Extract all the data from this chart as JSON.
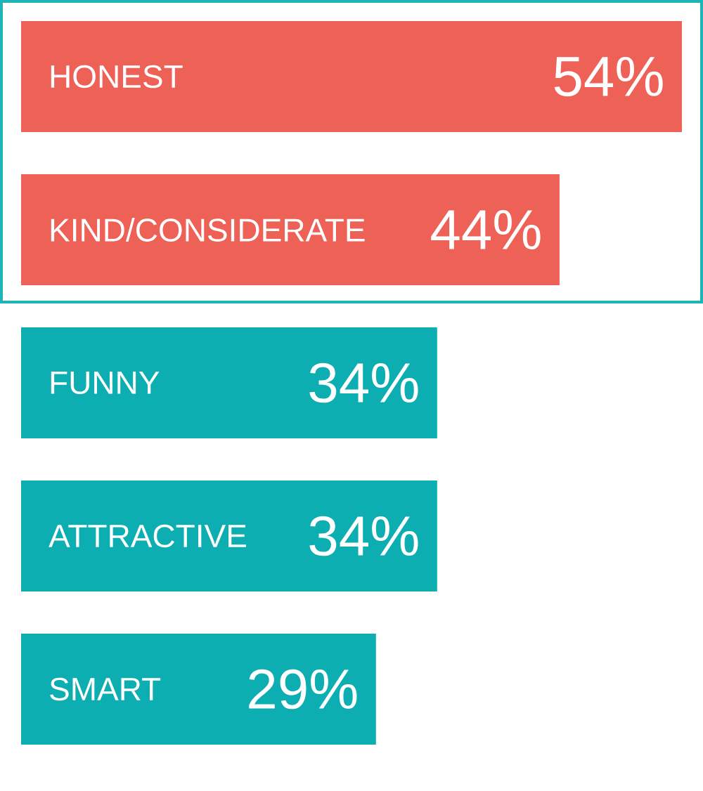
{
  "chart_data": {
    "type": "bar",
    "orientation": "horizontal",
    "categories": [
      "HONEST",
      "KIND/CONSIDERATE",
      "FUNNY",
      "ATTRACTIVE",
      "SMART"
    ],
    "values": [
      54,
      44,
      34,
      34,
      29
    ],
    "colors": [
      "#ee6156",
      "#ee6156",
      "#0daeb1",
      "#0daeb1",
      "#0daeb1"
    ],
    "value_labels": [
      "54%",
      "44%",
      "34%",
      "34%",
      "29%"
    ],
    "tick_labels": "y"
  }
}
